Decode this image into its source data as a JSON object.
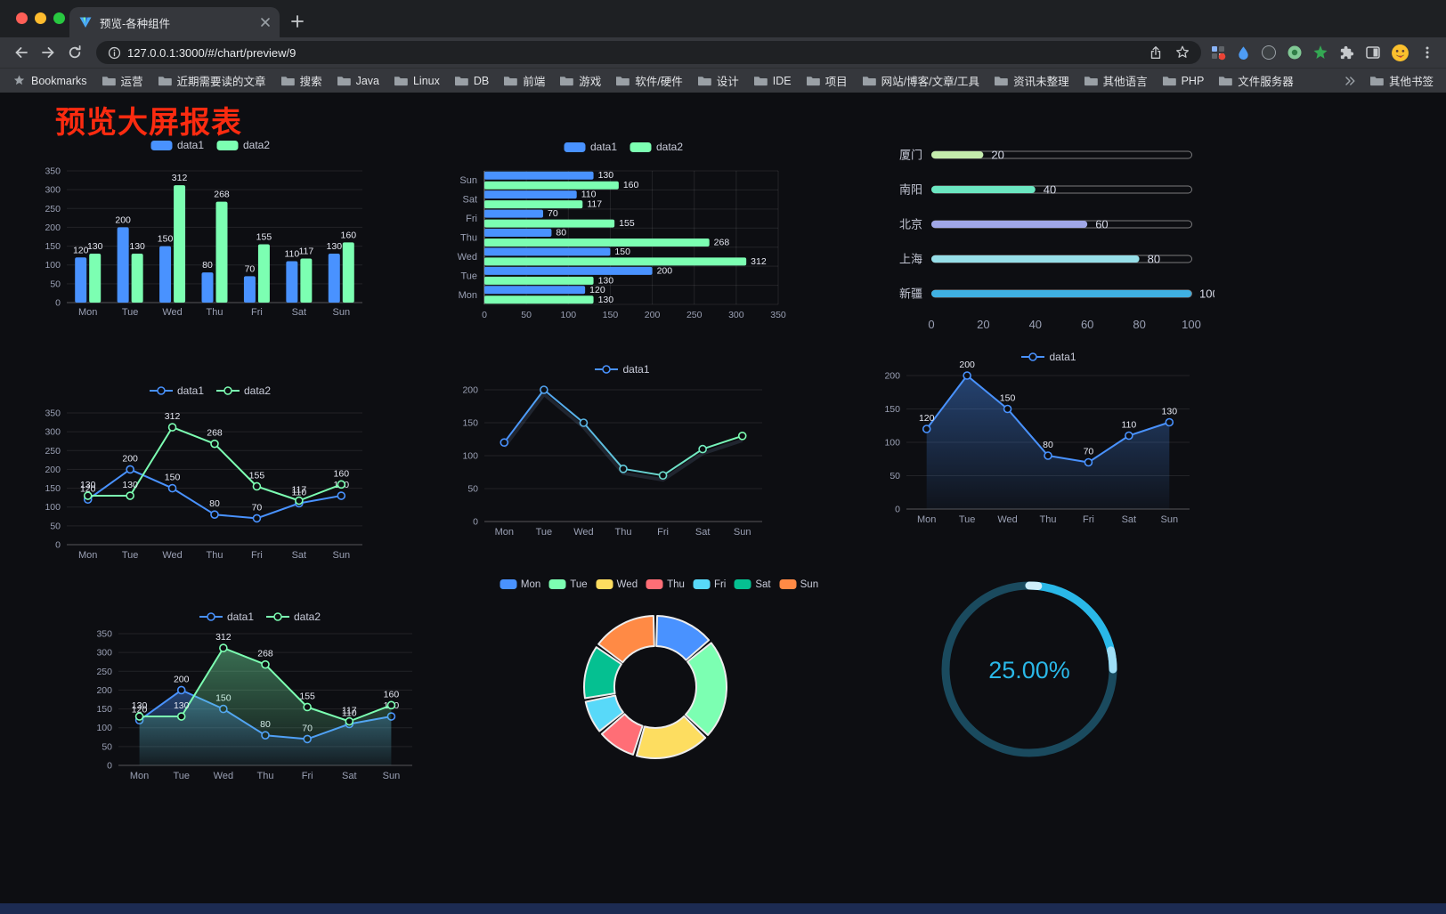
{
  "browser": {
    "tab_title": "预览-各种组件",
    "url": "127.0.0.1:3000/#/chart/preview/9",
    "bookmarks_bar": {
      "first_item": "Bookmarks",
      "folders": [
        "运营",
        "近期需要读的文章",
        "搜索",
        "Java",
        "Linux",
        "DB",
        "前端",
        "游戏",
        "软件/硬件",
        "设计",
        "IDE",
        "项目",
        "网站/博客/文章/工具",
        "资讯未整理",
        "其他语言",
        "PHP",
        "文件服务器"
      ],
      "other_bookmarks": "其他书签"
    }
  },
  "page": {
    "title": "预览大屏报表",
    "title_color": "#fb2b10",
    "background": "#0d0e12",
    "footer_color": "#1c2b52"
  },
  "chart_data": [
    {
      "id": "bar-vertical",
      "type": "bar",
      "categories": [
        "Mon",
        "Tue",
        "Wed",
        "Thu",
        "Fri",
        "Sat",
        "Sun"
      ],
      "series": [
        {
          "name": "data1",
          "color": "#4992ff",
          "values": [
            120,
            200,
            150,
            80,
            70,
            110,
            130
          ]
        },
        {
          "name": "data2",
          "color": "#7cffb2",
          "values": [
            130,
            130,
            312,
            268,
            155,
            117,
            160
          ]
        }
      ],
      "ylim": [
        0,
        350
      ],
      "yticks": [
        0,
        50,
        100,
        150,
        200,
        250,
        300,
        350
      ],
      "labels": true,
      "legend_position": "top",
      "grid": true
    },
    {
      "id": "bar-horizontal",
      "type": "hbar",
      "categories": [
        "Mon",
        "Tue",
        "Wed",
        "Thu",
        "Fri",
        "Sat",
        "Sun"
      ],
      "series": [
        {
          "name": "data1",
          "color": "#4992ff",
          "values": [
            120,
            200,
            150,
            80,
            70,
            110,
            130
          ]
        },
        {
          "name": "data2",
          "color": "#7cffb2",
          "values": [
            130,
            130,
            312,
            268,
            155,
            117,
            160
          ]
        }
      ],
      "xlim": [
        0,
        350
      ],
      "xticks": [
        0,
        50,
        100,
        150,
        200,
        250,
        300,
        350
      ],
      "labels": true,
      "legend_position": "top",
      "grid": true
    },
    {
      "id": "progress-bars",
      "type": "progress",
      "max": 100,
      "xticks": [
        0,
        20,
        40,
        60,
        80,
        100
      ],
      "rows": [
        {
          "label": "厦门",
          "value": 20,
          "color": "#c4ebad"
        },
        {
          "label": "南阳",
          "value": 40,
          "color": "#6be6c1"
        },
        {
          "label": "北京",
          "value": 60,
          "color": "#a0a7e6"
        },
        {
          "label": "上海",
          "value": 80,
          "color": "#96dee8"
        },
        {
          "label": "新疆",
          "value": 100,
          "color": "#3fb1e3"
        }
      ]
    },
    {
      "id": "line-two-series",
      "type": "line",
      "categories": [
        "Mon",
        "Tue",
        "Wed",
        "Thu",
        "Fri",
        "Sat",
        "Sun"
      ],
      "series": [
        {
          "name": "data1",
          "color": "#4992ff",
          "values": [
            120,
            200,
            150,
            80,
            70,
            110,
            130
          ]
        },
        {
          "name": "data2",
          "color": "#7cffb2",
          "values": [
            130,
            130,
            312,
            268,
            155,
            117,
            160
          ]
        }
      ],
      "ylim": [
        0,
        350
      ],
      "yticks": [
        0,
        50,
        100,
        150,
        200,
        250,
        300,
        350
      ],
      "labels": true,
      "legend_position": "top",
      "grid": true
    },
    {
      "id": "line-gradient",
      "type": "line",
      "categories": [
        "Mon",
        "Tue",
        "Wed",
        "Thu",
        "Fri",
        "Sat",
        "Sun"
      ],
      "series": [
        {
          "name": "data1",
          "gradient": [
            "#4992ff",
            "#7cffb2"
          ],
          "color": "#4992ff",
          "values": [
            120,
            200,
            150,
            80,
            70,
            110,
            130
          ]
        }
      ],
      "ylim": [
        0,
        200
      ],
      "yticks": [
        0,
        50,
        100,
        150,
        200
      ],
      "labels": false,
      "shadow": true,
      "legend_position": "top",
      "grid": true
    },
    {
      "id": "line-area",
      "type": "line",
      "categories": [
        "Mon",
        "Tue",
        "Wed",
        "Thu",
        "Fri",
        "Sat",
        "Sun"
      ],
      "series": [
        {
          "name": "data1",
          "color": "#4992ff",
          "values": [
            120,
            200,
            150,
            80,
            70,
            110,
            130
          ],
          "area": true
        }
      ],
      "ylim": [
        0,
        200
      ],
      "yticks": [
        0,
        50,
        100,
        150,
        200
      ],
      "labels": true,
      "legend_position": "top",
      "grid": true
    },
    {
      "id": "line-area-two",
      "type": "line",
      "categories": [
        "Mon",
        "Tue",
        "Wed",
        "Thu",
        "Fri",
        "Sat",
        "Sun"
      ],
      "series": [
        {
          "name": "data1",
          "color": "#4992ff",
          "values": [
            120,
            200,
            150,
            80,
            70,
            110,
            130
          ],
          "area": true
        },
        {
          "name": "data2",
          "color": "#7cffb2",
          "values": [
            130,
            130,
            312,
            268,
            155,
            117,
            160
          ],
          "area": true
        }
      ],
      "ylim": [
        0,
        350
      ],
      "yticks": [
        0,
        50,
        100,
        150,
        200,
        250,
        300,
        350
      ],
      "labels": true,
      "legend_position": "top",
      "grid": true
    },
    {
      "id": "donut",
      "type": "donut",
      "items": [
        {
          "name": "Mon",
          "value": 120,
          "color": "#4992ff"
        },
        {
          "name": "Tue",
          "value": 200,
          "color": "#7cffb2"
        },
        {
          "name": "Wed",
          "value": 150,
          "color": "#fddd60"
        },
        {
          "name": "Thu",
          "value": 80,
          "color": "#ff6e76"
        },
        {
          "name": "Fri",
          "value": 70,
          "color": "#58d9f9"
        },
        {
          "name": "Sat",
          "value": 110,
          "color": "#05c091"
        },
        {
          "name": "Sun",
          "value": 130,
          "color": "#ff8a45"
        }
      ],
      "legend_position": "top"
    },
    {
      "id": "gauge",
      "type": "gauge",
      "value": 25,
      "label": "25.00%",
      "color": "#2ab8e8",
      "tip_color": "#9fdef5",
      "track_color": "#1a4a5e"
    }
  ]
}
